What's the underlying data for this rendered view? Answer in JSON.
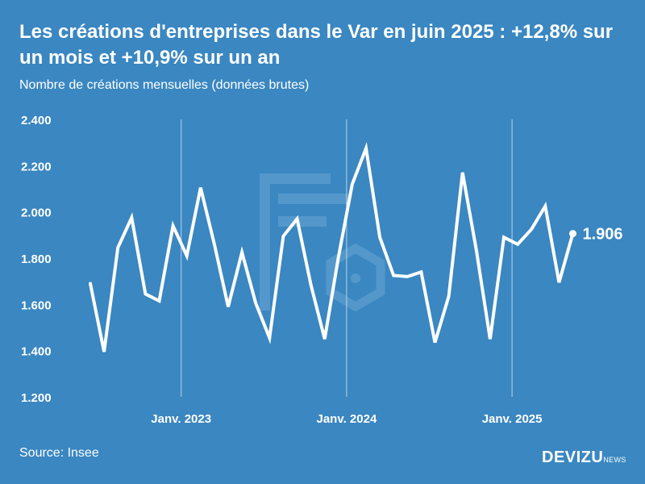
{
  "title": "Les créations d'entreprises dans le Var en juin 2025 : +12,8% sur un mois et +10,9% sur un an",
  "subtitle": "Nombre de créations mensuelles (données brutes)",
  "source": "Source: Insee",
  "brand": {
    "name": "DEVIZU",
    "suffix": "NEWS"
  },
  "colors": {
    "background": "#3a87c1",
    "line": "#ffffff",
    "watermark": "#6aa6d3"
  },
  "chart_data": {
    "type": "line",
    "x": [
      "2022-06",
      "2022-07",
      "2022-08",
      "2022-09",
      "2022-10",
      "2022-11",
      "2022-12",
      "2023-01",
      "2023-02",
      "2023-03",
      "2023-04",
      "2023-05",
      "2023-06",
      "2023-07",
      "2023-08",
      "2023-09",
      "2023-10",
      "2023-11",
      "2023-12",
      "2024-01",
      "2024-02",
      "2024-03",
      "2024-04",
      "2024-05",
      "2024-06",
      "2024-07",
      "2024-08",
      "2024-09",
      "2024-10",
      "2024-11",
      "2024-12",
      "2025-01",
      "2025-02",
      "2025-03",
      "2025-04",
      "2025-05",
      "2025-06"
    ],
    "values": [
      1690,
      1395,
      1845,
      1975,
      1645,
      1615,
      1940,
      1810,
      2105,
      1860,
      1590,
      1825,
      1605,
      1455,
      1895,
      1970,
      1685,
      1450,
      1805,
      2120,
      2275,
      1890,
      1725,
      1720,
      1740,
      1435,
      1635,
      2170,
      1835,
      1450,
      1890,
      1860,
      1925,
      2025,
      1695,
      1906,
      null
    ],
    "ylim": [
      1200,
      2400
    ],
    "yticks": [
      "1.200",
      "1.400",
      "1.600",
      "1.800",
      "2.000",
      "2.200",
      "2.400"
    ],
    "xticks": [
      "Janv. 2023",
      "Janv. 2024",
      "Janv. 2025"
    ],
    "last_value_label": "1.906",
    "grid": "vertical lines at January"
  }
}
